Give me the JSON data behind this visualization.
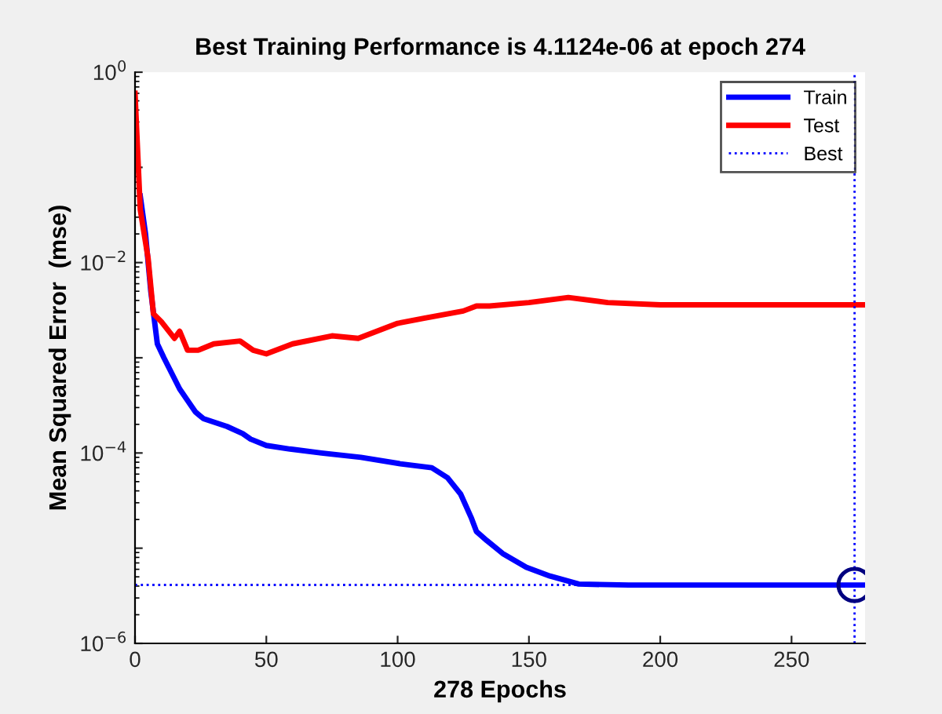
{
  "chart_data": {
    "type": "line",
    "title": "Best Training Performance is 4.1124e-06 at epoch 274",
    "xlabel": "278 Epochs",
    "ylabel": "Mean Squared Error  (mse)",
    "log": "y",
    "xlim": [
      0,
      278
    ],
    "xticks": [
      0,
      50,
      100,
      150,
      200,
      250
    ],
    "ylim": [
      1e-06,
      1
    ],
    "yticks": [
      {
        "value": 1,
        "label": "10$^{0}$"
      },
      {
        "value": 0.1,
        "label": null
      },
      {
        "value": 0.01,
        "label": "10$^{−2}$"
      },
      {
        "value": 0.001,
        "label": null
      },
      {
        "value": 0.0001,
        "label": "10$^{−4}$"
      },
      {
        "value": 1e-05,
        "label": null
      },
      {
        "value": 1e-06,
        "label": "10$^{−6}$"
      }
    ],
    "grid": false,
    "legend": "top right",
    "series": [
      {
        "name": "Train",
        "color": "#0000ff",
        "x": [
          2,
          4,
          6,
          8.5,
          11,
          17,
          23,
          26,
          35,
          41,
          44,
          50,
          59,
          71,
          86,
          101,
          113,
          119,
          124,
          128,
          130,
          134,
          140,
          149,
          158,
          169,
          188,
          278
        ],
        "values": [
          0.05,
          0.02,
          0.005,
          0.0014,
          0.001,
          0.00047,
          0.00027,
          0.00023,
          0.00019,
          0.00016,
          0.00014,
          0.00012,
          0.00011,
          0.0001,
          9e-05,
          7.7e-05,
          7e-05,
          5.5e-05,
          3.7e-05,
          2.1e-05,
          1.5e-05,
          1.2e-05,
          8.8e-06,
          6.3e-06,
          5.1e-06,
          4.2e-06,
          4.1e-06,
          4.1e-06
        ]
      },
      {
        "name": "Test",
        "color": "#ff0000",
        "x": [
          0,
          2,
          5,
          7,
          10,
          15,
          17,
          20,
          24,
          30,
          40,
          45,
          50,
          60,
          75,
          85,
          100,
          110,
          125,
          130,
          135,
          150,
          165,
          180,
          200,
          278
        ],
        "values": [
          0.6,
          0.036,
          0.011,
          0.0029,
          0.0024,
          0.0016,
          0.0019,
          0.0012,
          0.0012,
          0.0014,
          0.0015,
          0.0012,
          0.0011,
          0.0014,
          0.0017,
          0.0016,
          0.0023,
          0.0026,
          0.0031,
          0.0035,
          0.0035,
          0.0038,
          0.0043,
          0.0038,
          0.0036,
          0.0036
        ]
      },
      {
        "type": "scatter",
        "color": "#000080",
        "marker": "circle",
        "x": [
          274
        ],
        "values": [
          4.1124e-06
        ]
      }
    ],
    "ref_lines": [
      {
        "axis": "x",
        "value": 274,
        "label": "Best",
        "color": "#0000ff",
        "line_style": "dotted"
      },
      {
        "axis": "y",
        "value": 4.1124e-06,
        "color": "#0000ff",
        "line_style": "dotted"
      }
    ]
  }
}
